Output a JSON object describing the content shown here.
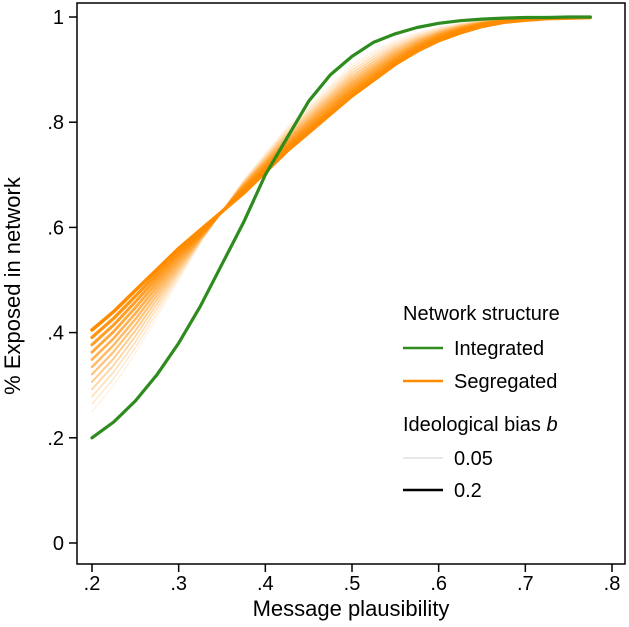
{
  "chart_data": {
    "type": "line",
    "title": "",
    "xlabel": "Message plausibility",
    "ylabel": "% Exposed in network",
    "xlim": [
      0.2,
      0.8
    ],
    "ylim": [
      0,
      1
    ],
    "x_ticks": [
      0.2,
      0.3,
      0.4,
      0.5,
      0.6,
      0.7,
      0.8
    ],
    "x_tick_labels": [
      ".2",
      ".3",
      ".4",
      ".5",
      ".6",
      ".7",
      ".8"
    ],
    "y_ticks": [
      0,
      0.2,
      0.4,
      0.6,
      0.8,
      1
    ],
    "y_tick_labels": [
      "0",
      ".2",
      ".4",
      ".6",
      ".8",
      "1"
    ],
    "grid": false,
    "legend_position": "bottom-right",
    "colors": {
      "integrated": "#2e8b1e",
      "segregated": "#ff8c00"
    },
    "x": [
      0.2,
      0.225,
      0.25,
      0.275,
      0.3,
      0.325,
      0.35,
      0.375,
      0.4,
      0.425,
      0.45,
      0.475,
      0.5,
      0.525,
      0.55,
      0.575,
      0.6,
      0.625,
      0.65,
      0.675,
      0.7,
      0.725,
      0.75,
      0.775
    ],
    "series": [
      {
        "group": "integrated",
        "bias": 0.2,
        "values": [
          0.2,
          0.23,
          0.27,
          0.32,
          0.38,
          0.45,
          0.53,
          0.61,
          0.7,
          0.77,
          0.84,
          0.89,
          0.925,
          0.952,
          0.968,
          0.98,
          0.988,
          0.993,
          0.996,
          0.998,
          0.999,
          0.999,
          1.0,
          1.0
        ]
      },
      {
        "group": "segregated",
        "bias": 0.05,
        "values": [
          0.25,
          0.3,
          0.36,
          0.43,
          0.5,
          0.57,
          0.63,
          0.69,
          0.74,
          0.79,
          0.83,
          0.87,
          0.91,
          0.935,
          0.955,
          0.97,
          0.98,
          0.988,
          0.993,
          0.996,
          0.998,
          0.999,
          0.999,
          1.0
        ]
      },
      {
        "group": "segregated",
        "bias": 0.2,
        "values": [
          0.405,
          0.44,
          0.48,
          0.52,
          0.56,
          0.595,
          0.63,
          0.665,
          0.705,
          0.745,
          0.78,
          0.815,
          0.85,
          0.88,
          0.91,
          0.935,
          0.955,
          0.97,
          0.982,
          0.99,
          0.994,
          0.997,
          0.998,
          0.999
        ]
      }
    ],
    "segregated_band_count": 12,
    "legend": {
      "structure_title": "Network structure",
      "integrated_label": "Integrated",
      "segregated_label": "Segregated",
      "bias_title_prefix": "Ideological bias ",
      "bias_title_symbol": "b",
      "bias_low_label": "0.05",
      "bias_high_label": "0.2"
    }
  }
}
